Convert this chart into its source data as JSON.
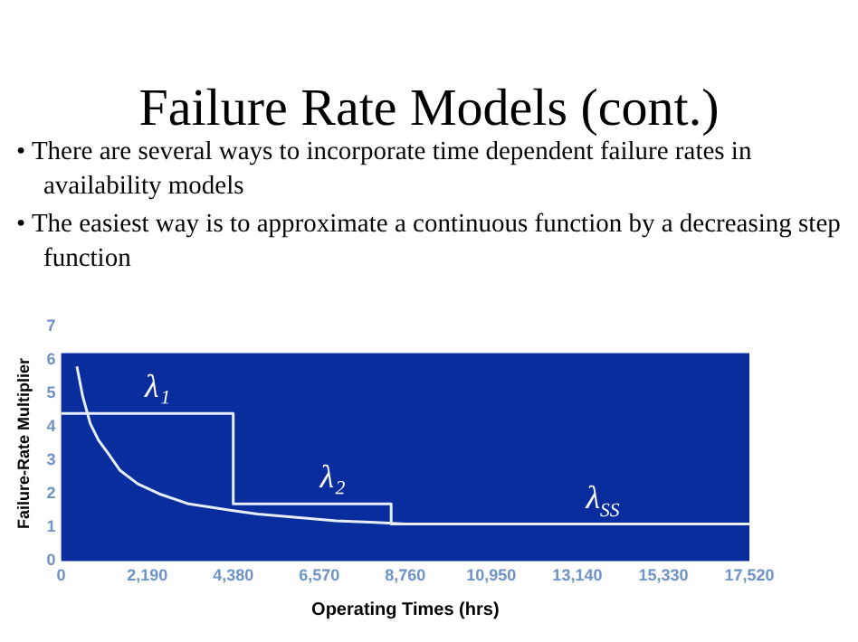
{
  "chart_data": {
    "type": "line",
    "title": "Failure Rate Models (cont.)",
    "annotations": [
      "• There are several ways to incorporate time dependent failure rates in availability models",
      "• The easiest way is to approximate a continuous function by a decreasing step function",
      {
        "text": "λ₁",
        "x": 2130,
        "y": 4.4
      },
      {
        "text": "λ₂",
        "x": 6590,
        "y": 1.7
      },
      {
        "text": "λ$_{SS}$",
        "x": 13360,
        "y": 1.1
      }
    ],
    "bands": [
      {
        "axis": "y",
        "from": 0,
        "to": 6.2,
        "color": "#0a2d9e"
      }
    ],
    "xlabel": "Operating Times (hrs)",
    "ylabel": "Failure-Rate Multiplier",
    "series": [
      {
        "type": "step",
        "color": "#e6eefc",
        "x": [
          0,
          4380,
          8400,
          17520
        ],
        "values": [
          4.4,
          1.7,
          1.1,
          1.1
        ]
      },
      {
        "type": "line",
        "color": "#e6eefc",
        "x": [
          400,
          550,
          740,
          950,
          1200,
          1500,
          1950,
          2500,
          3250,
          4380,
          5000,
          6000,
          7000,
          8000,
          8760
        ],
        "values": [
          5.8,
          4.9,
          4.1,
          3.6,
          3.2,
          2.7,
          2.3,
          2.0,
          1.7,
          1.5,
          1.4,
          1.3,
          1.2,
          1.15,
          1.1
        ]
      }
    ],
    "xlim": [
      0,
      17520
    ],
    "ylim": [
      0,
      7
    ],
    "xticks": [
      0,
      {
        "value": 2190,
        "label": "2,190"
      },
      {
        "value": 4380,
        "label": "4,380"
      },
      {
        "value": 6570,
        "label": "6,570"
      },
      {
        "value": 8760,
        "label": "8,760"
      },
      {
        "value": 10950,
        "label": "10,950"
      },
      {
        "value": 13140,
        "label": "13,140"
      },
      {
        "value": 15330,
        "label": "15,330"
      },
      {
        "value": 17520,
        "label": "17,520"
      }
    ],
    "yticks": [
      0,
      1,
      2,
      3,
      4,
      5,
      6,
      7
    ],
    "grid": false,
    "legend": false,
    "marker": "none",
    "line_style": "solid"
  }
}
